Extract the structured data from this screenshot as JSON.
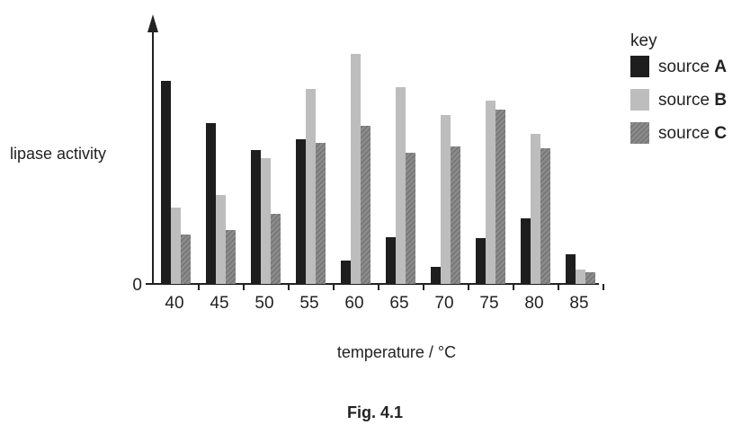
{
  "chart_data": {
    "type": "bar",
    "title": "",
    "xlabel": "temperature / °C",
    "ylabel": "lipase activity",
    "y_tick_labels": [
      "0"
    ],
    "categories": [
      "40",
      "45",
      "50",
      "55",
      "60",
      "65",
      "70",
      "75",
      "80",
      "85"
    ],
    "series": [
      {
        "name": "source A",
        "name_prefix": "source ",
        "name_key": "A",
        "color": "#1e1e1e",
        "pattern": "solid",
        "values": [
          226,
          179,
          149,
          161,
          26,
          52,
          19,
          51,
          73,
          33
        ]
      },
      {
        "name": "source B",
        "name_prefix": "source ",
        "name_key": "B",
        "color": "#bdbdbd",
        "pattern": "solid",
        "values": [
          85,
          99,
          140,
          217,
          256,
          219,
          188,
          204,
          167,
          16
        ]
      },
      {
        "name": "source C",
        "name_prefix": "source ",
        "name_key": "C",
        "color": "#8a8a8a",
        "pattern": "hatched",
        "values": [
          55,
          60,
          78,
          157,
          176,
          146,
          153,
          194,
          151,
          13
        ]
      }
    ],
    "ylim": [
      0,
      280
    ],
    "grid": false,
    "legend": {
      "title": "key",
      "position": "right"
    },
    "caption": "Fig. 4.1"
  }
}
